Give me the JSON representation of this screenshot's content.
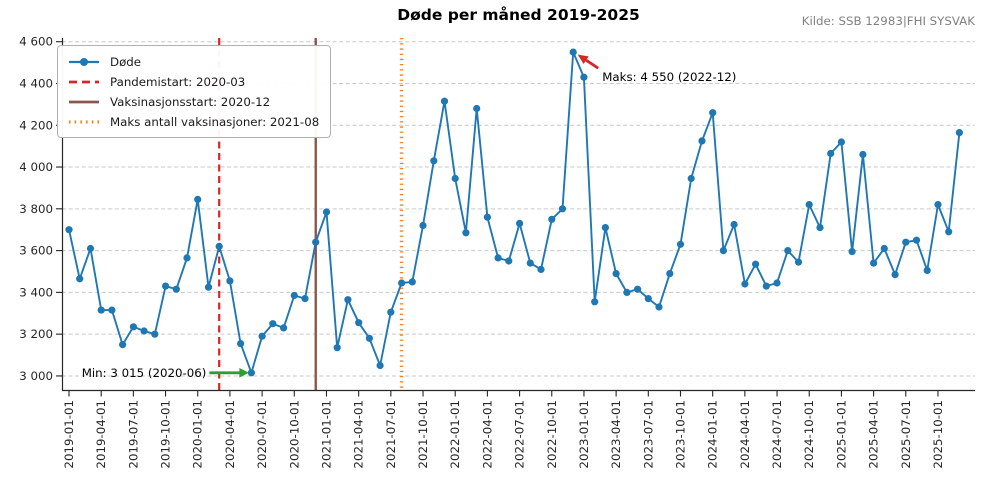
{
  "title": "Døde per måned 2019-2025",
  "source": "Kilde: SSB 12983|FHI SYSVAK",
  "chart_data": {
    "type": "line",
    "series_name": "Døde",
    "start_month": "2019-01",
    "line_color": "#1f77b4",
    "values": [
      3700,
      3465,
      3610,
      3315,
      3315,
      3150,
      3235,
      3215,
      3200,
      3430,
      3415,
      3565,
      3845,
      3425,
      3620,
      3455,
      3155,
      3015,
      3190,
      3250,
      3230,
      3385,
      3370,
      3640,
      3785,
      3135,
      3365,
      3255,
      3180,
      3050,
      3305,
      3445,
      3450,
      3720,
      4030,
      4315,
      3945,
      3685,
      4280,
      3760,
      3565,
      3550,
      3730,
      3540,
      3510,
      3750,
      3800,
      4550,
      4430,
      3355,
      3710,
      3490,
      3400,
      3415,
      3370,
      3330,
      3490,
      3630,
      3945,
      4125,
      4260,
      3600,
      3725,
      3440,
      3535,
      3430,
      3445,
      3600,
      3545,
      3820,
      3710,
      4065,
      4120,
      3595,
      4060,
      3540,
      3610,
      3485,
      3640,
      3650,
      3505,
      3820,
      3690,
      4165
    ],
    "ylim": [
      2930,
      4620
    ],
    "y_ticks": {
      "values": [
        3000,
        3200,
        3400,
        3600,
        3800,
        4000,
        4200,
        4400,
        4600
      ],
      "labels": [
        "3 000",
        "3 200",
        "3 400",
        "3 600",
        "3 800",
        "4 000",
        "4 200",
        "4 400",
        "4 600"
      ]
    },
    "x_tick_labels": [
      "2019-01-01",
      "2019-04-01",
      "2019-07-01",
      "2019-10-01",
      "2020-01-01",
      "2020-04-01",
      "2020-07-01",
      "2020-10-01",
      "2021-01-01",
      "2021-04-01",
      "2021-07-01",
      "2021-10-01",
      "2022-01-01",
      "2022-04-01",
      "2022-07-01",
      "2022-10-01",
      "2023-01-01",
      "2023-04-01",
      "2023-07-01",
      "2023-10-01",
      "2024-01-01",
      "2024-04-01",
      "2024-07-01",
      "2024-10-01",
      "2025-01-01",
      "2025-04-01",
      "2025-07-01",
      "2025-10-01"
    ],
    "grid": "horizontal-dashed",
    "legend_position": "upper-left",
    "events": [
      {
        "label": "Pandemistart: 2020-03",
        "month": "2020-03",
        "color": "#d62728",
        "style": "dashed"
      },
      {
        "label": "Vaksinasjonsstart: 2020-12",
        "month": "2020-12",
        "color": "#8c564b",
        "style": "solid"
      },
      {
        "label": "Maks antall vaksinasjoner: 2021-08",
        "month": "2021-08",
        "color": "#ff7f0e",
        "style": "dotted"
      }
    ],
    "annotations": [
      {
        "id": "max",
        "label": "Maks: 4 550 (2022-12)",
        "month": "2022-12",
        "value": 4550,
        "arrow_color": "#d62728"
      },
      {
        "id": "min",
        "label": "Min: 3 015 (2020-06)",
        "month": "2020-06",
        "value": 3015,
        "arrow_color": "#2ca02c"
      }
    ],
    "legend": [
      {
        "label": "Døde",
        "color": "#1f77b4",
        "style": "line-marker"
      },
      {
        "label": "Pandemistart: 2020-03",
        "color": "#d62728",
        "style": "dashed"
      },
      {
        "label": "Vaksinasjonsstart: 2020-12",
        "color": "#8c564b",
        "style": "solid"
      },
      {
        "label": "Maks antall vaksinasjoner: 2021-08",
        "color": "#ff7f0e",
        "style": "dotted"
      }
    ]
  }
}
